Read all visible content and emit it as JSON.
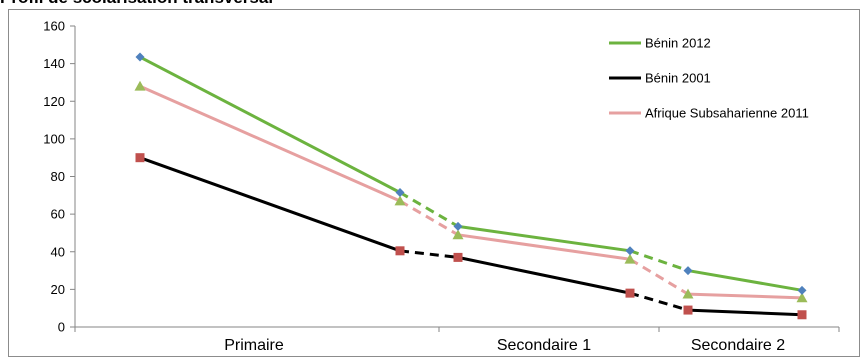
{
  "chart_data": {
    "type": "line",
    "title": "Profil de scolarisation transversal",
    "xlabel": "",
    "ylabel": "",
    "ylim": [
      0,
      160
    ],
    "yticks": [
      0,
      20,
      40,
      60,
      80,
      100,
      120,
      140,
      160
    ],
    "categories": [
      "Primaire",
      "Secondaire 1",
      "Secondaire 2"
    ],
    "grid": false,
    "legend_position": "top-right",
    "series": [
      {
        "name": "Bénin 2012",
        "color": "#6cb33f",
        "marker": "diamond",
        "marker_color": "#4f81bd",
        "segments": [
          {
            "style": "solid",
            "values": [
              143.5,
              71.5
            ]
          },
          {
            "style": "dashed",
            "values": [
              71.5,
              53.5
            ]
          },
          {
            "style": "solid",
            "values": [
              53.5,
              40.5
            ]
          },
          {
            "style": "dashed",
            "values": [
              40.5,
              30
            ]
          },
          {
            "style": "solid",
            "values": [
              30,
              19.5
            ]
          }
        ]
      },
      {
        "name": "Bénin 2001",
        "color": "#000000",
        "marker": "square",
        "marker_color": "#c0504d",
        "segments": [
          {
            "style": "solid",
            "values": [
              90,
              40.5
            ]
          },
          {
            "style": "dashed",
            "values": [
              40.5,
              37
            ]
          },
          {
            "style": "solid",
            "values": [
              37,
              18
            ]
          },
          {
            "style": "dashed",
            "values": [
              18,
              9
            ]
          },
          {
            "style": "solid",
            "values": [
              9,
              6.5
            ]
          }
        ]
      },
      {
        "name": "Afrique Subsaharienne 2011",
        "color": "#e6a0a0",
        "marker": "triangle",
        "marker_color": "#9bbb59",
        "segments": [
          {
            "style": "solid",
            "values": [
              128,
              67
            ]
          },
          {
            "style": "dashed",
            "values": [
              67,
              49
            ]
          },
          {
            "style": "solid",
            "values": [
              49,
              36
            ]
          },
          {
            "style": "dashed",
            "values": [
              36,
              17.5
            ]
          },
          {
            "style": "solid",
            "values": [
              17.5,
              15.5
            ]
          }
        ]
      }
    ]
  }
}
